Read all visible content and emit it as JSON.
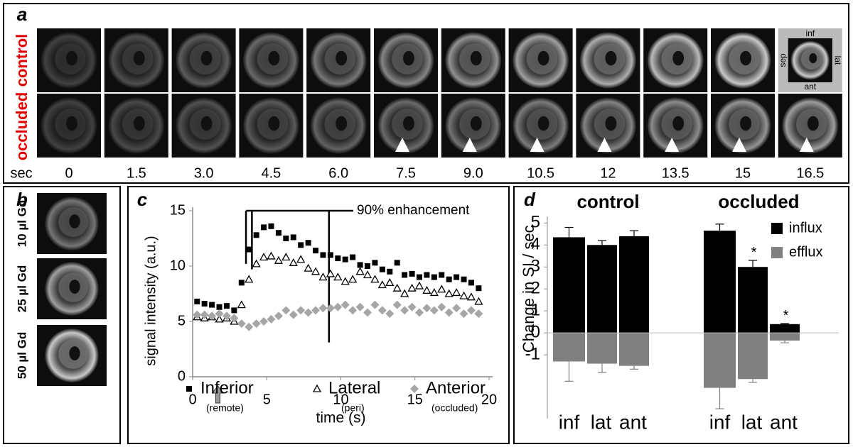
{
  "panel_a": {
    "label": "a",
    "rows": [
      "control",
      "occluded"
    ],
    "time_unit": "sec",
    "times": [
      "0",
      "1.5",
      "3.0",
      "4.5",
      "6.0",
      "7.5",
      "9.0",
      "10.5",
      "12",
      "13.5",
      "15",
      "16.5"
    ],
    "orientation": {
      "top": "inf",
      "right": "lat",
      "bottom": "ant",
      "left": "sep"
    }
  },
  "panel_b": {
    "label": "b",
    "images": [
      "10 µl Gd",
      "25 µl Gd",
      "50 µl Gd"
    ]
  },
  "chart_data": [
    {
      "type": "scatter",
      "panel_label": "c",
      "x_label": "time (s)",
      "y_label": "signal intensity (a.u.)",
      "annotation": "90% enhancement",
      "x": [
        0.3,
        0.8,
        1.3,
        1.8,
        2.3,
        2.8,
        3.3,
        3.8,
        4.3,
        4.8,
        5.3,
        5.8,
        6.3,
        6.8,
        7.3,
        7.8,
        8.3,
        8.8,
        9.3,
        9.8,
        10.3,
        10.8,
        11.3,
        11.8,
        12.3,
        12.8,
        13.3,
        13.8,
        14.3,
        14.8,
        15.3,
        15.8,
        16.3,
        16.8,
        17.3,
        17.8,
        18.3,
        18.8,
        19.3
      ],
      "series": [
        {
          "name": "Inferior",
          "sublabel": "(remote)",
          "color": "#000000",
          "marker": "square",
          "values": [
            6.8,
            6.6,
            6.5,
            6.3,
            6.4,
            6.0,
            8.5,
            11.5,
            12.8,
            13.5,
            13.6,
            13.0,
            12.5,
            12.6,
            11.9,
            12.1,
            11.4,
            11.0,
            11.0,
            10.7,
            10.6,
            10.8,
            10.1,
            10.0,
            10.3,
            9.7,
            9.5,
            10.3,
            9.2,
            9.3,
            9.0,
            9.2,
            9.0,
            9.2,
            8.8,
            9.0,
            8.8,
            8.5,
            8.0
          ]
        },
        {
          "name": "Lateral",
          "sublabel": "(peri)",
          "color": "#000000",
          "marker": "triangle",
          "values": [
            5.4,
            5.3,
            5.4,
            5.2,
            5.3,
            5.0,
            6.5,
            8.8,
            10.2,
            10.8,
            10.9,
            10.5,
            10.8,
            10.3,
            10.6,
            9.8,
            9.5,
            9.0,
            9.3,
            9.0,
            8.6,
            8.8,
            9.5,
            9.2,
            8.8,
            8.3,
            8.5,
            8.0,
            7.5,
            8.0,
            8.2,
            7.8,
            7.6,
            7.9,
            7.5,
            7.6,
            7.3,
            7.2,
            6.8
          ]
        },
        {
          "name": "Anterior",
          "sublabel": "(occluded)",
          "color": "#a6a6a6",
          "marker": "diamond",
          "values": [
            5.6,
            5.6,
            5.5,
            5.7,
            5.5,
            5.3,
            4.8,
            4.5,
            4.8,
            5.0,
            5.2,
            5.5,
            6.0,
            5.6,
            6.0,
            5.8,
            6.0,
            6.2,
            6.2,
            6.3,
            6.5,
            6.0,
            6.3,
            5.8,
            6.5,
            6.0,
            5.7,
            6.5,
            6.0,
            6.3,
            5.8,
            6.2,
            6.0,
            6.3,
            5.8,
            6.2,
            5.7,
            6.0,
            5.7
          ]
        }
      ],
      "enhancement_lines": [
        {
          "x": 3.6,
          "y_end": 10.2
        },
        {
          "x": 4.0,
          "y_end": 9.7
        },
        {
          "x": 9.2,
          "y_end": 3.1
        }
      ],
      "injection_time": 1.7,
      "xlim": [
        0,
        20
      ],
      "ylim": [
        0,
        15
      ],
      "xticks": [
        0,
        5,
        10,
        15,
        20
      ],
      "yticks": [
        0,
        5,
        10,
        15
      ]
    },
    {
      "type": "bar",
      "panel_label": "d",
      "y_label": "Change in SI / sec",
      "group_labels": [
        "control",
        "occluded"
      ],
      "categories": [
        "inf",
        "lat",
        "ant",
        "inf",
        "lat",
        "ant"
      ],
      "series": [
        {
          "name": "influx",
          "color": "#000000",
          "values": [
            4.35,
            4.0,
            4.4,
            4.65,
            3.0,
            0.4
          ],
          "errors": [
            0.45,
            0.2,
            0.25,
            0.3,
            0.3,
            0.03
          ]
        },
        {
          "name": "efflux",
          "color": "#808080",
          "values": [
            -1.3,
            -1.4,
            -1.5,
            -2.5,
            -2.1,
            -0.35
          ],
          "errors": [
            0.9,
            0.4,
            0.15,
            0.95,
            0.15,
            0.1
          ]
        }
      ],
      "significance": [
        null,
        null,
        null,
        null,
        "*",
        "*"
      ],
      "ylim": [
        -3.9,
        5.3
      ],
      "yticks": [
        -1,
        0,
        1,
        2,
        3,
        4,
        5
      ]
    }
  ]
}
